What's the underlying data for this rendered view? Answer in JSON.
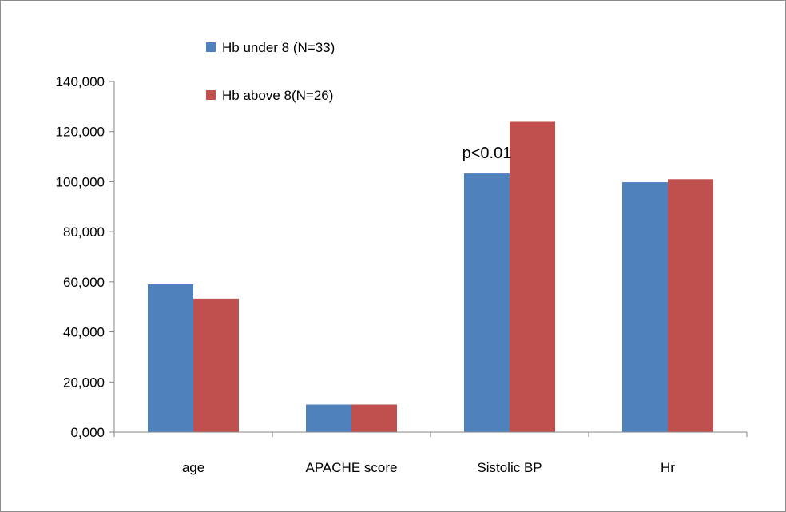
{
  "chart_data": {
    "type": "bar",
    "categories": [
      "age",
      "APACHE score",
      "Sistolic BP",
      "Hr"
    ],
    "series": [
      {
        "name": "Hb under 8 (N=33)",
        "color": "#4f81bd",
        "values": [
          59,
          11,
          103.3,
          99.8
        ]
      },
      {
        "name": "Hb above 8(N=26)",
        "color": "#c0504d",
        "values": [
          53.3,
          11,
          123.9,
          101
        ]
      }
    ],
    "ylim": [
      0,
      140
    ],
    "yticks": [
      0,
      20,
      40,
      60,
      80,
      100,
      120,
      140
    ],
    "ytick_labels": [
      "0,000",
      "20,000",
      "40,000",
      "60,000",
      "80,000",
      "100,000",
      "120,000",
      "140,000"
    ],
    "title": "",
    "xlabel": "",
    "ylabel": "",
    "grid": false,
    "legend_position": "top-left",
    "annotations": [
      {
        "text": "p<0.01",
        "category": "Sistolic BP"
      }
    ]
  }
}
